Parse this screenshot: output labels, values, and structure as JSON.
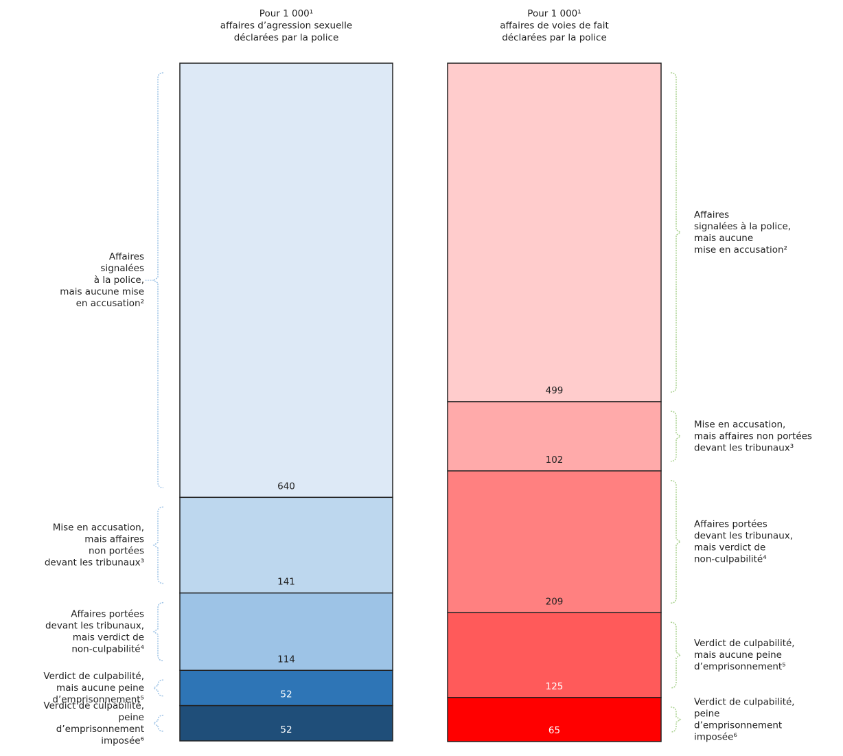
{
  "chart_data": {
    "type": "stacked_bar",
    "ylim": [
      0,
      1000
    ],
    "columns": [
      {
        "title": [
          "Pour 1 000¹",
          "affaires d’agression sexuelle",
          "déclarées par la police"
        ],
        "values": [
          640,
          141,
          114,
          52,
          52
        ],
        "colors": [
          "#dde9f6",
          "#bdd7ee",
          "#9dc3e6",
          "#2e75b6",
          "#1f4e79"
        ],
        "bracket_color": "#9dc3e6",
        "labels": [
          [
            "Affaires",
            "signalées",
            "à la police,",
            "mais aucune mise",
            "en accusation²"
          ],
          [
            "Mise en accusation,",
            "mais affaires",
            "non portées",
            "devant les tribunaux³"
          ],
          [
            "Affaires portées",
            "devant les tribunaux,",
            "mais verdict de",
            "non-culpabilité⁴"
          ],
          [
            "Verdict de culpabilité,",
            "mais aucune peine",
            "d’emprisonnement⁵"
          ],
          [
            "Verdict de culpabilité,",
            "peine",
            "d’emprisonnement",
            "imposée⁶"
          ]
        ]
      },
      {
        "title": [
          "Pour 1 000¹",
          "affaires de voies de fait",
          "déclarées par la police"
        ],
        "values": [
          499,
          102,
          209,
          125,
          65
        ],
        "colors": [
          "#ffcccc",
          "#ffaaaa",
          "#ff8080",
          "#ff5a5a",
          "#ff0000"
        ],
        "bracket_color": "#a9d18e",
        "labels": [
          [
            "Affaires",
            "signalées à la police,",
            "mais aucune",
            "mise en accusation²"
          ],
          [
            "Mise en accusation,",
            "mais affaires non portées",
            "devant les tribunaux³"
          ],
          [
            "Affaires portées",
            "devant les tribunaux,",
            "mais verdict de",
            "non-culpabilité⁴"
          ],
          [
            "Verdict de culpabilité,",
            "mais aucune peine",
            "d’emprisonnement⁵"
          ],
          [
            "Verdict de culpabilité,",
            "peine",
            "d’emprisonnement",
            "imposée⁶"
          ]
        ]
      }
    ]
  }
}
